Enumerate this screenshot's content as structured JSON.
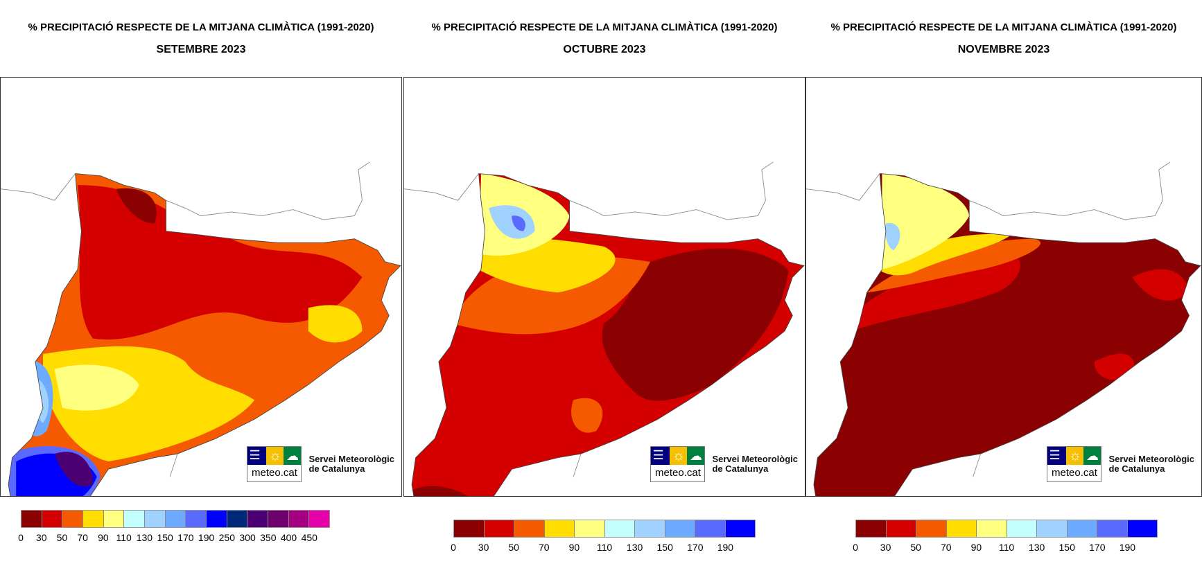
{
  "panels": [
    {
      "title": "% PRECIPITACIÓ RESPECTE DE LA MITJANA CLIMÀTICA (1991-2020)",
      "month": "SETEMBRE 2023",
      "legend": {
        "labels": [
          "0",
          "30",
          "50",
          "70",
          "90",
          "110",
          "130",
          "150",
          "170",
          "190",
          "250",
          "300",
          "350",
          "400",
          "450"
        ],
        "colors": [
          "#8b0000",
          "#d40000",
          "#f55a00",
          "#ffdd00",
          "#ffff80",
          "#c4ffff",
          "#a0d2ff",
          "#6eaaff",
          "#5a6aff",
          "#0000ff",
          "#002878",
          "#4b0073",
          "#6e006e",
          "#a50082",
          "#e600aa"
        ]
      }
    },
    {
      "title": "% PRECIPITACIÓ RESPECTE DE LA MITJANA CLIMÀTICA (1991-2020)",
      "month": "OCTUBRE 2023",
      "legend": {
        "labels": [
          "0",
          "30",
          "50",
          "70",
          "90",
          "110",
          "130",
          "150",
          "170",
          "190"
        ],
        "colors": [
          "#8b0000",
          "#d40000",
          "#f55a00",
          "#ffdd00",
          "#ffff80",
          "#c4ffff",
          "#a0d2ff",
          "#6eaaff",
          "#5a6aff",
          "#0000ff"
        ]
      }
    },
    {
      "title": "% PRECIPITACIÓ RESPECTE DE LA MITJANA CLIMÀTICA (1991-2020)",
      "month": "NOVEMBRE 2023",
      "legend": {
        "labels": [
          "0",
          "30",
          "50",
          "70",
          "90",
          "110",
          "130",
          "150",
          "170",
          "190"
        ],
        "colors": [
          "#8b0000",
          "#d40000",
          "#f55a00",
          "#ffdd00",
          "#ffff80",
          "#c4ffff",
          "#a0d2ff",
          "#6eaaff",
          "#5a6aff",
          "#0000ff"
        ]
      }
    }
  ],
  "logo": {
    "wordmark": "meteo.cat",
    "name_line1": "Servei Meteorològic",
    "name_line2": "de Catalunya",
    "colors": [
      "#000080",
      "#f5c000",
      "#008040"
    ]
  }
}
